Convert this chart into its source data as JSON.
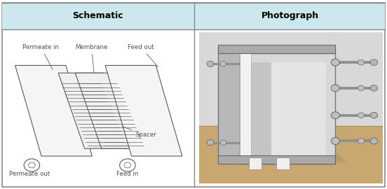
{
  "title_left": "Schematic",
  "title_right": "Photograph",
  "header_bg": "#cce8ed",
  "header_text_color": "#000000",
  "border_color": "#888888",
  "bg_color": "#ffffff",
  "label_permeate_in": "Permeate in",
  "label_membrane": "Membrane",
  "label_feed_out": "Feed out",
  "label_permeate_out": "Permeate out",
  "label_feed_in": "Feed in",
  "label_spacer": "Spacer",
  "schematic_line_color": "#505050",
  "font_size_header": 9,
  "font_size_label": 6.2
}
